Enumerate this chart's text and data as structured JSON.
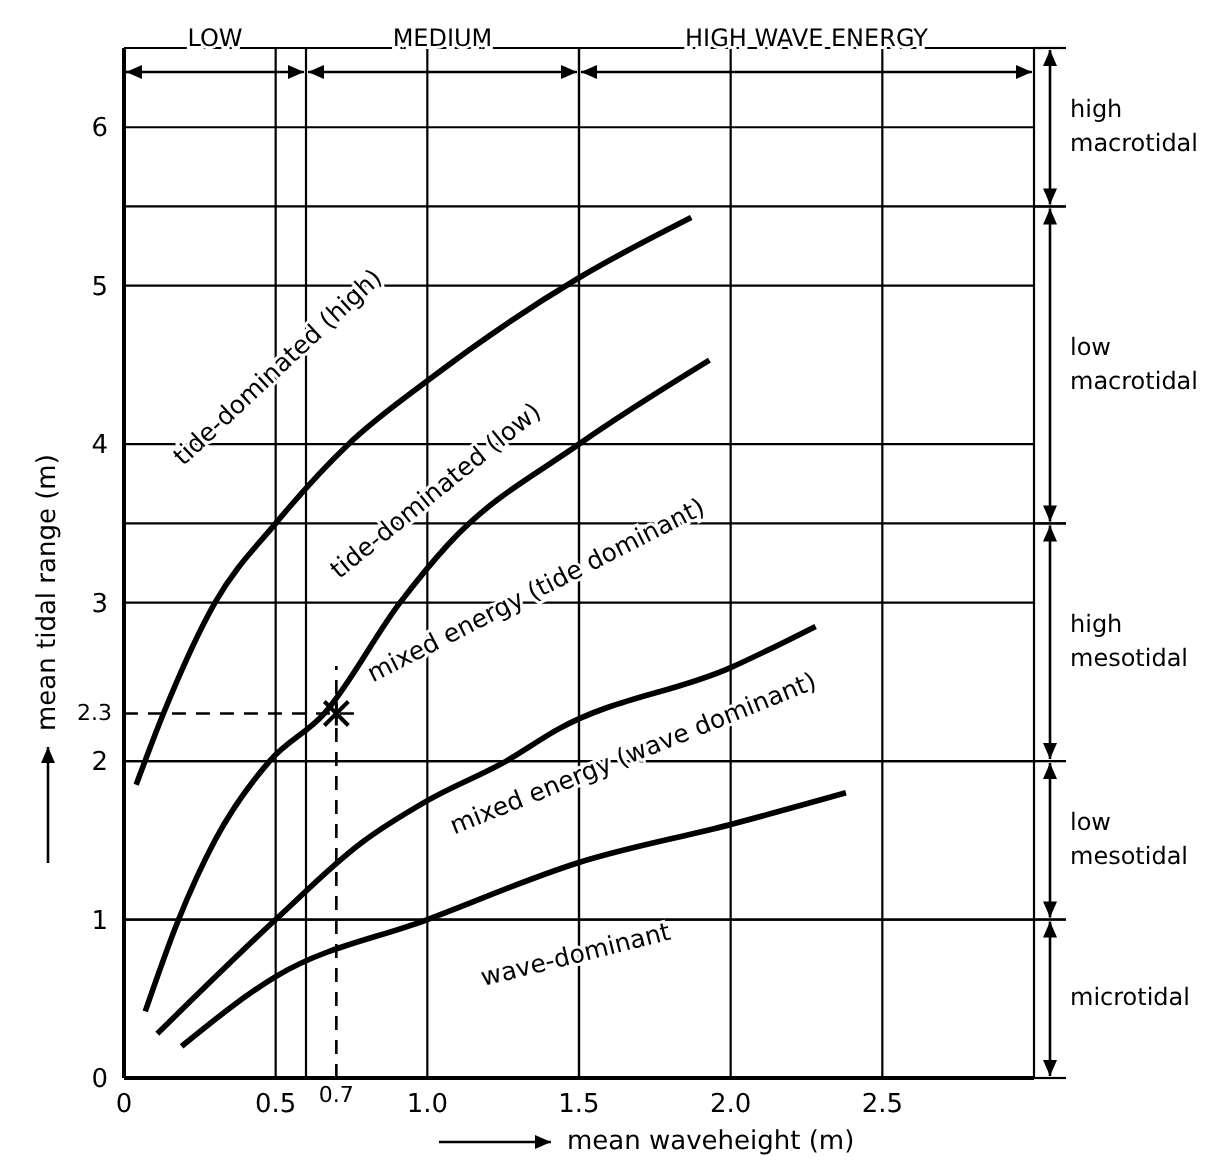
{
  "chart_data": {
    "type": "line",
    "xlabel": "mean waveheight (m)",
    "ylabel": "mean tidal range (m)",
    "xlim": [
      0,
      3.0
    ],
    "xticks": [
      0,
      0.5,
      {
        "value": 1,
        "label": "1.0"
      },
      1.5,
      {
        "value": 2,
        "label": "2.0"
      },
      2.5
    ],
    "ylim": [
      0,
      6.5
    ],
    "yticks": [
      0,
      1,
      2,
      3,
      4,
      5,
      6
    ],
    "grid": true,
    "series": [
      {
        "color": "#000000",
        "x": [
          0.04,
          0.13,
          0.3,
          0.5,
          0.74,
          1.0,
          1.5,
          1.87
        ],
        "values": [
          1.85,
          2.3,
          3.0,
          3.5,
          4.0,
          4.4,
          5.05,
          5.43
        ]
      },
      {
        "color": "#000000",
        "x": [
          0.07,
          0.18,
          0.3,
          0.48,
          0.66,
          0.91,
          1.07,
          1.5,
          1.93
        ],
        "values": [
          0.42,
          1.0,
          1.5,
          2.0,
          2.3,
          3.0,
          3.37,
          4.0,
          4.53
        ]
      },
      {
        "color": "#000000",
        "x": [
          0.11,
          0.5,
          0.78,
          1.0,
          1.26,
          1.43,
          2.0,
          2.28
        ],
        "values": [
          0.28,
          1.0,
          1.48,
          1.75,
          2.0,
          2.2,
          2.59,
          2.85
        ]
      },
      {
        "color": "#000000",
        "x": [
          0.19,
          0.5,
          1.0,
          1.5,
          2.0,
          2.38
        ],
        "values": [
          0.2,
          0.64,
          1.0,
          1.36,
          1.6,
          1.8
        ]
      },
      {
        "type": "line",
        "line_style": "dashed",
        "color": "#000000",
        "x": [
          0,
          0.78
        ],
        "values": [
          2.3,
          2.3
        ]
      },
      {
        "type": "line",
        "line_style": "dashed",
        "color": "#000000",
        "x": [
          0.7,
          0.7
        ],
        "values": [
          0,
          2.6
        ]
      },
      {
        "type": "scatter",
        "marker": "cross",
        "color": "#000000",
        "x": [
          0.7
        ],
        "values": [
          2.3
        ]
      }
    ],
    "ref_lines": [
      {
        "axis": "x",
        "value": 0.6
      },
      {
        "axis": "x",
        "value": 1.5
      },
      {
        "axis": "y",
        "value": 1
      },
      {
        "axis": "y",
        "value": 2
      },
      {
        "axis": "y",
        "value": 3.5
      },
      {
        "axis": "y",
        "value": 5.5
      }
    ],
    "annotations": [
      "tide-dominated (high)",
      "tide-dominated (low)",
      "mixed energy (tide dominant)",
      "mixed energy (wave dominant)",
      "wave-dominant",
      "LOW",
      "MEDIUM",
      "HIGH WAVE ENERGY",
      "high macrotidal",
      "low macrotidal",
      "high mesotidal",
      "low mesotidal",
      "microtidal",
      {
        "text": "0.7",
        "x": 0.7,
        "y": 0
      },
      {
        "text": "2.3",
        "x": 0,
        "y": 2.3
      }
    ]
  }
}
